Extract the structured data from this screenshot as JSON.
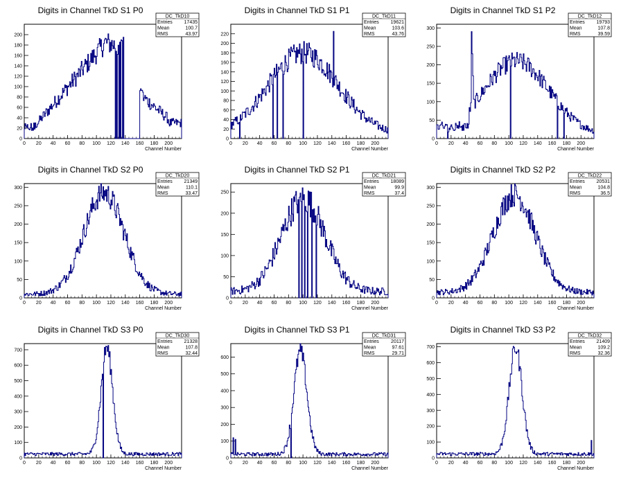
{
  "page": {
    "background": "#ffffff",
    "line_color": "#000080"
  },
  "chart_data": [
    {
      "type": "histogram",
      "title": "Digits in Channel TkD S1 P0",
      "xlabel": "Channel Number",
      "ylabel": "",
      "xlim": [
        0,
        218
      ],
      "ylim": [
        0,
        220
      ],
      "xticks": [
        0,
        20,
        40,
        60,
        80,
        100,
        120,
        140,
        160,
        180,
        200
      ],
      "yticks": [
        0,
        20,
        40,
        60,
        80,
        100,
        120,
        140,
        160,
        180,
        200
      ],
      "stats": {
        "name": "DC_TkD10",
        "entries": "17435",
        "mean": "100.7",
        "rms": "43.97"
      },
      "shape": {
        "kind": "s1p0"
      }
    },
    {
      "type": "histogram",
      "title": "Digits in Channel TkD S1 P1",
      "xlabel": "Channel Number",
      "ylabel": "",
      "xlim": [
        0,
        218
      ],
      "ylim": [
        0,
        240
      ],
      "xticks": [
        0,
        20,
        40,
        60,
        80,
        100,
        120,
        140,
        160,
        180,
        200
      ],
      "yticks": [
        0,
        20,
        40,
        60,
        80,
        100,
        120,
        140,
        160,
        180,
        200,
        220
      ],
      "stats": {
        "name": "DC_TkD11",
        "entries": "19621",
        "mean": "103.6",
        "rms": "43.76"
      },
      "shape": {
        "kind": "s1p1"
      }
    },
    {
      "type": "histogram",
      "title": "Digits in Channel TkD S1 P2",
      "xlabel": "Channel Number",
      "ylabel": "",
      "xlim": [
        0,
        218
      ],
      "ylim": [
        0,
        310
      ],
      "xticks": [
        0,
        20,
        40,
        60,
        80,
        100,
        120,
        140,
        160,
        180,
        200
      ],
      "yticks": [
        0,
        50,
        100,
        150,
        200,
        250,
        300
      ],
      "stats": {
        "name": "DC_TkD12",
        "entries": "19793",
        "mean": "107.8",
        "rms": "39.59"
      },
      "shape": {
        "kind": "s1p2"
      }
    },
    {
      "type": "histogram",
      "title": "Digits in Channel TkD S2 P0",
      "xlabel": "Channel Number",
      "ylabel": "",
      "xlim": [
        0,
        218
      ],
      "ylim": [
        0,
        310
      ],
      "xticks": [
        0,
        20,
        40,
        60,
        80,
        100,
        120,
        140,
        160,
        180,
        200
      ],
      "yticks": [
        0,
        50,
        100,
        150,
        200,
        250,
        300
      ],
      "stats": {
        "name": "DC_TkD20",
        "entries": "21349",
        "mean": "110.1",
        "rms": "33.47"
      },
      "shape": {
        "kind": "gauss",
        "mu": 110,
        "sigma": 28,
        "peak": 285,
        "base": 10
      }
    },
    {
      "type": "histogram",
      "title": "Digits in Channel TkD S2 P1",
      "xlabel": "Channel Number",
      "ylabel": "",
      "xlim": [
        0,
        218
      ],
      "ylim": [
        0,
        270
      ],
      "xticks": [
        0,
        20,
        40,
        60,
        80,
        100,
        120,
        140,
        160,
        180,
        200
      ],
      "yticks": [
        0,
        50,
        100,
        150,
        200,
        250
      ],
      "stats": {
        "name": "DC_TkD21",
        "entries": "18089",
        "mean": "99.9",
        "rms": "37.4"
      },
      "shape": {
        "kind": "s2p1"
      }
    },
    {
      "type": "histogram",
      "title": "Digits in Channel TkD S2 P2",
      "xlabel": "Channel Number",
      "ylabel": "",
      "xlim": [
        0,
        218
      ],
      "ylim": [
        0,
        310
      ],
      "xticks": [
        0,
        20,
        40,
        60,
        80,
        100,
        120,
        140,
        160,
        180,
        200
      ],
      "yticks": [
        0,
        50,
        100,
        150,
        200,
        250,
        300
      ],
      "stats": {
        "name": "DC_TkD22",
        "entries": "20531",
        "mean": "104.8",
        "rms": "36.5"
      },
      "shape": {
        "kind": "gauss",
        "mu": 107,
        "sigma": 29,
        "peak": 280,
        "base": 15
      }
    },
    {
      "type": "histogram",
      "title": "Digits in Channel TkD S3 P0",
      "xlabel": "Channel Number",
      "ylabel": "",
      "xlim": [
        0,
        218
      ],
      "ylim": [
        0,
        740
      ],
      "xticks": [
        0,
        20,
        40,
        60,
        80,
        100,
        120,
        140,
        160,
        180,
        200
      ],
      "yticks": [
        0,
        100,
        200,
        300,
        400,
        500,
        600,
        700
      ],
      "stats": {
        "name": "DC_TkD30",
        "entries": "21328",
        "mean": "107.8",
        "rms": "32.44"
      },
      "shape": {
        "kind": "peak",
        "mu": 114,
        "sigma": 8,
        "peak": 690,
        "base": 25,
        "dips": [
          109
        ]
      }
    },
    {
      "type": "histogram",
      "title": "Digits in Channel TkD S3 P1",
      "xlabel": "Channel Number",
      "ylabel": "",
      "xlim": [
        0,
        218
      ],
      "ylim": [
        0,
        680
      ],
      "xticks": [
        0,
        20,
        40,
        60,
        80,
        100,
        120,
        140,
        160,
        180,
        200
      ],
      "yticks": [
        0,
        100,
        200,
        300,
        400,
        500,
        600
      ],
      "stats": {
        "name": "DC_TkD31",
        "entries": "20117",
        "mean": "97.61",
        "rms": "29.71"
      },
      "shape": {
        "kind": "peak",
        "mu": 96,
        "sigma": 9,
        "peak": 610,
        "base": 22,
        "dips": [
          83
        ],
        "spikes": [
          [
            3,
            120
          ],
          [
            6,
            110
          ]
        ]
      }
    },
    {
      "type": "histogram",
      "title": "Digits in Channel TkD S3 P2",
      "xlabel": "Channel Number",
      "ylabel": "",
      "xlim": [
        0,
        218
      ],
      "ylim": [
        0,
        720
      ],
      "xticks": [
        0,
        20,
        40,
        60,
        80,
        100,
        120,
        140,
        160,
        180,
        200
      ],
      "yticks": [
        0,
        100,
        200,
        300,
        400,
        500,
        600,
        700
      ],
      "stats": {
        "name": "DC_TkD32",
        "entries": "21409",
        "mean": "109.2",
        "rms": "32.36"
      },
      "shape": {
        "kind": "peak",
        "mu": 109,
        "sigma": 9,
        "peak": 670,
        "base": 25,
        "spikes": [
          [
            214,
            110
          ]
        ]
      }
    }
  ],
  "stat_labels": {
    "entries": "Entries",
    "mean": "Mean",
    "rms": "RMS"
  }
}
